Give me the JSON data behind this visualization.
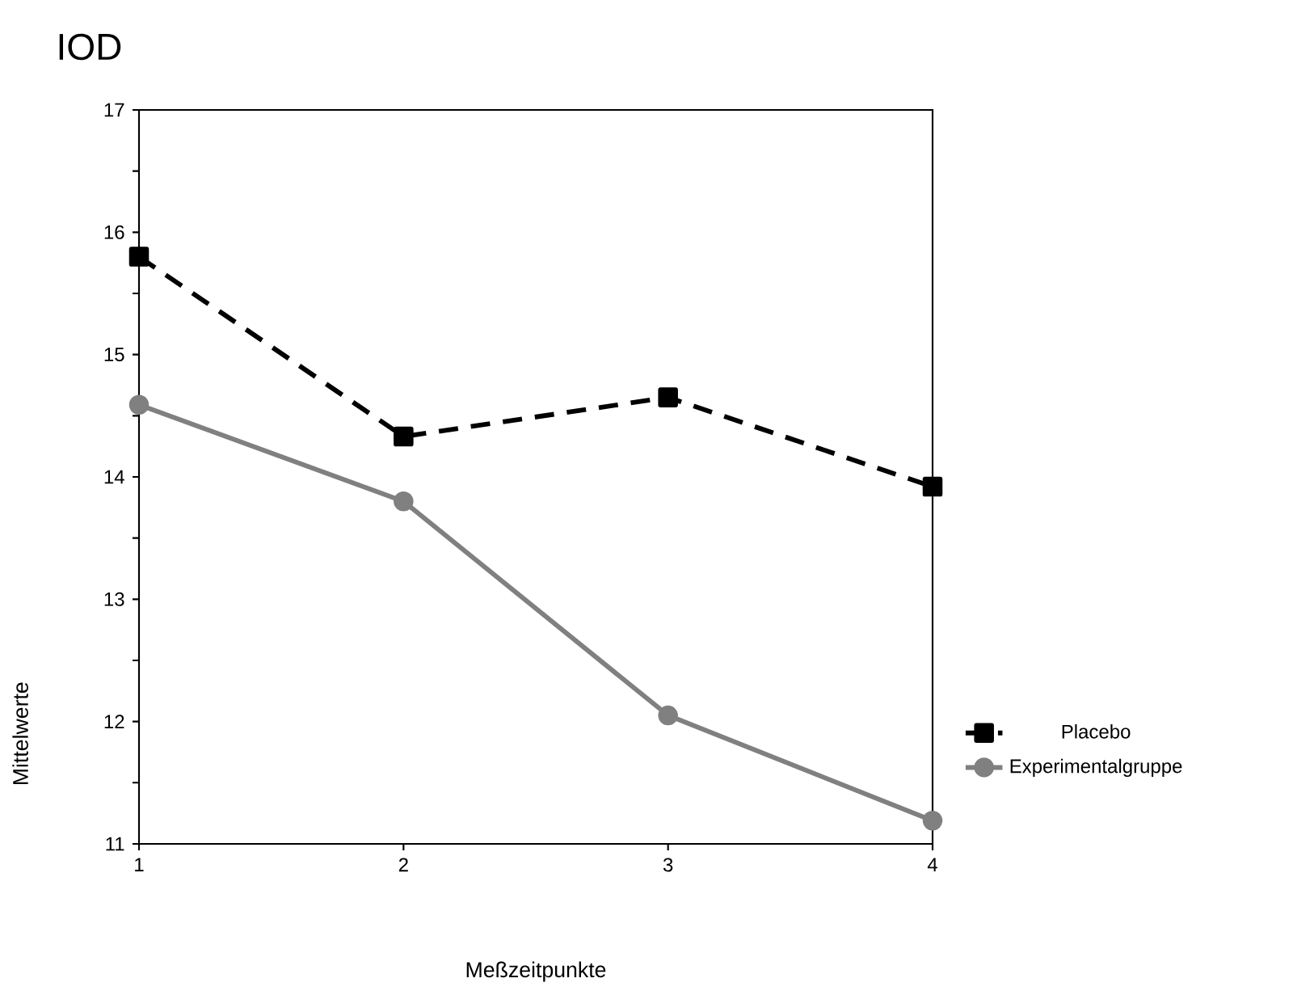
{
  "chart_data": {
    "type": "line",
    "title": "IOD",
    "xlabel": "Meßzeitpunkte",
    "ylabel": "Mittelwerte",
    "x": [
      1,
      2,
      3,
      4
    ],
    "series": [
      {
        "name": "Placebo",
        "color": "#000000",
        "line_style": "dashed",
        "marker": "square",
        "values": [
          15.8,
          14.33,
          14.65,
          13.92
        ]
      },
      {
        "name": "Experimentalgruppe",
        "color": "#808080",
        "line_style": "solid",
        "marker": "circle",
        "values": [
          14.59,
          13.8,
          12.05,
          11.19
        ]
      }
    ],
    "xlim": [
      1,
      4
    ],
    "xticks": [
      1,
      2,
      3,
      4
    ],
    "ylim": [
      11,
      17
    ],
    "yticks": [
      11,
      {
        "value": 11.5,
        "label": null
      },
      12,
      {
        "value": 12.5,
        "label": null
      },
      13,
      {
        "value": 13.5,
        "label": null
      },
      14,
      {
        "value": 14.5,
        "label": null
      },
      15,
      {
        "value": 15.5,
        "label": null
      },
      16,
      {
        "value": 16.5,
        "label": null
      },
      17
    ],
    "grid": false,
    "legend": "right"
  }
}
